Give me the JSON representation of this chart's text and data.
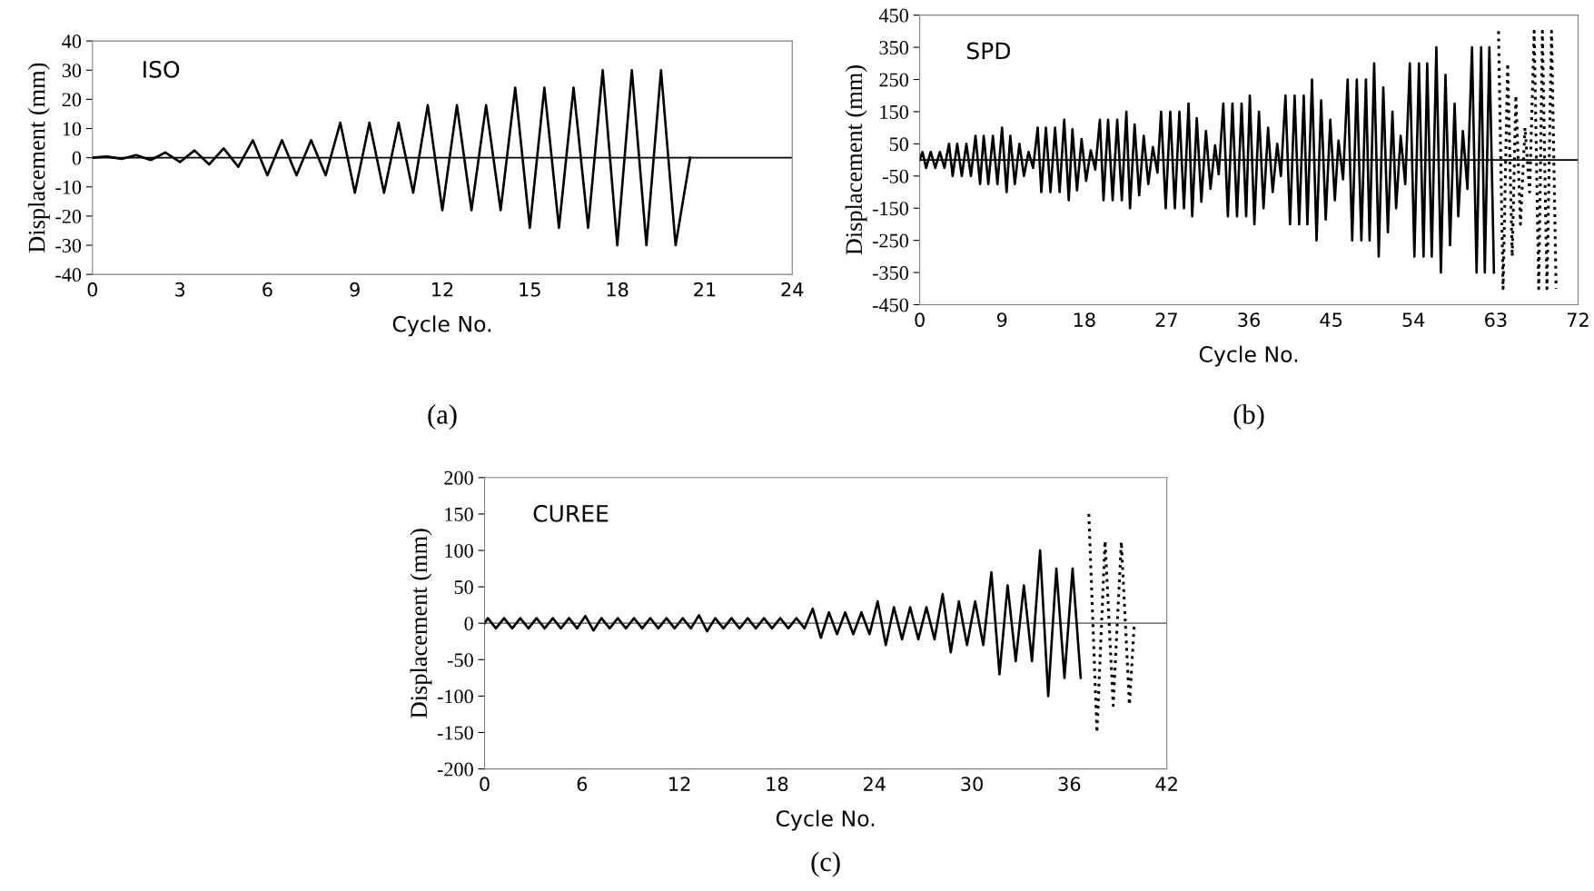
{
  "chart_data": [
    {
      "type": "line",
      "xlabel": "Cycle No.",
      "ylabel": "Displacement (mm)",
      "annotations": [
        "ISO",
        "(a)"
      ],
      "xlim": [
        0,
        24
      ],
      "xticks": [
        0,
        3,
        6,
        9,
        12,
        15,
        18,
        21,
        24
      ],
      "ylim": [
        -40,
        40
      ],
      "yticks": [
        -40,
        -30,
        -20,
        -10,
        0,
        10,
        20,
        30,
        40
      ],
      "grid": false,
      "ref_lines": [
        {
          "axis": "y",
          "value": 0,
          "color": "#000000"
        }
      ],
      "series": [
        {
          "color": "#000000",
          "line_style": "solid",
          "x": [
            0,
            0.5,
            1,
            1.5,
            2,
            2.5,
            3,
            3.5,
            4,
            4.5,
            5,
            5.5,
            6,
            6.5,
            7,
            7.5,
            8,
            8.5,
            9,
            9.5,
            10,
            10.5,
            11,
            11.5,
            12,
            12.5,
            13,
            13.5,
            14,
            14.5,
            15,
            15.5,
            16,
            16.5,
            17,
            17.5,
            18,
            18.5,
            19,
            19.5,
            20,
            20.5
          ],
          "values": [
            0,
            0.4,
            -0.4,
            0.9,
            -0.8,
            1.8,
            -1.5,
            2.5,
            -2.3,
            3.2,
            -3.1,
            6,
            -6,
            6,
            -6,
            6,
            -6,
            12,
            -12,
            12,
            -12,
            12,
            -12,
            18,
            -18,
            18,
            -18,
            18,
            -18,
            24,
            -24,
            24,
            -24,
            24,
            -24,
            30,
            -30,
            30,
            -30,
            30,
            -30,
            0
          ]
        }
      ]
    },
    {
      "type": "line",
      "xlabel": "Cycle No.",
      "ylabel": "Displacement (mm)",
      "annotations": [
        "SPD",
        "(b)"
      ],
      "xlim": [
        0,
        72
      ],
      "xticks": [
        0,
        9,
        18,
        27,
        36,
        45,
        54,
        63,
        72
      ],
      "ylim": [
        -450,
        450
      ],
      "yticks": [
        -450,
        -350,
        -250,
        -150,
        -50,
        50,
        150,
        250,
        350,
        450
      ],
      "grid": false,
      "ref_lines": [
        {
          "axis": "y",
          "value": 0,
          "color": "#000000"
        }
      ],
      "series": [
        {
          "color": "#000000",
          "line_style": "solid",
          "x": [
            0,
            0.3,
            0.7,
            1.2,
            1.7,
            2.2,
            2.7,
            3.2,
            3.6,
            4.1,
            4.6,
            5.1,
            5.6,
            6.1,
            6.6,
            7.0,
            7.5,
            8.0,
            8.5,
            9.0,
            9.5,
            9.9,
            10.4,
            10.9,
            11.4,
            11.9,
            12.4,
            12.9,
            13.3,
            13.8,
            14.3,
            14.8,
            15.3,
            15.8,
            16.3,
            16.7,
            17.2,
            17.7,
            18.2,
            18.7,
            19.2,
            19.7,
            20.1,
            20.6,
            21.1,
            21.6,
            22.1,
            22.6,
            23.0,
            23.5,
            24.0,
            24.5,
            25.0,
            25.5,
            26.0,
            26.4,
            26.9,
            27.4,
            27.9,
            28.4,
            28.9,
            29.4,
            29.8,
            30.3,
            30.8,
            31.3,
            31.8,
            32.3,
            32.7,
            33.2,
            33.7,
            34.2,
            34.7,
            35.2,
            35.7,
            36.1,
            36.6,
            37.1,
            37.6,
            38.1,
            38.6,
            39.1,
            39.5,
            40.0,
            40.5,
            41.0,
            41.5,
            42.0,
            42.4,
            42.9,
            43.4,
            43.9,
            44.4,
            44.9,
            45.4,
            45.8,
            46.3,
            46.8,
            47.3,
            47.8,
            48.3,
            48.8,
            49.2,
            49.7,
            50.2,
            50.7,
            51.2,
            51.7,
            52.1,
            52.6,
            53.1,
            53.6,
            54.1,
            54.6,
            55.1,
            55.5,
            56.0,
            56.5,
            57.0,
            57.5,
            58.0,
            58.5,
            58.9,
            59.4,
            59.9,
            60.4,
            60.9,
            61.4,
            61.8,
            62.3,
            62.8
          ],
          "values": [
            0,
            25,
            -25,
            25,
            -25,
            25,
            -25,
            50,
            -50,
            50,
            -50,
            50,
            -50,
            75,
            -75,
            75,
            -75,
            75,
            -75,
            100,
            -100,
            75,
            -75,
            50,
            -50,
            25,
            -25,
            100,
            -100,
            100,
            -100,
            100,
            -100,
            125,
            -125,
            95,
            -95,
            65,
            -65,
            30,
            -30,
            125,
            -125,
            125,
            -125,
            125,
            -125,
            150,
            -150,
            110,
            -110,
            75,
            -75,
            40,
            -40,
            150,
            -150,
            150,
            -150,
            150,
            -150,
            175,
            -175,
            130,
            -130,
            90,
            -90,
            45,
            -45,
            175,
            -175,
            175,
            -175,
            175,
            -175,
            200,
            -200,
            150,
            -150,
            100,
            -100,
            50,
            -50,
            200,
            -200,
            200,
            -200,
            200,
            -200,
            250,
            -250,
            185,
            -185,
            125,
            -125,
            60,
            -60,
            250,
            -250,
            250,
            -250,
            250,
            -250,
            300,
            -300,
            225,
            -225,
            150,
            -150,
            75,
            -75,
            300,
            -300,
            300,
            -300,
            300,
            -300,
            350,
            -350,
            265,
            -265,
            175,
            -175,
            90,
            -90,
            350,
            -350,
            350,
            -350,
            350,
            -350
          ]
        },
        {
          "color": "#000000",
          "line_style": "dotted",
          "x": [
            63.3,
            63.8,
            64.3,
            64.8,
            65.2,
            65.7,
            66.2,
            66.7,
            67.2,
            67.7,
            68.1,
            68.6,
            69.1,
            69.6
          ],
          "values": [
            400,
            -400,
            300,
            -300,
            200,
            -200,
            100,
            -100,
            400,
            -400,
            400,
            -400,
            400,
            -400
          ]
        }
      ]
    },
    {
      "type": "line",
      "xlabel": "Cycle No.",
      "ylabel": "Displacement (mm)",
      "annotations": [
        "CUREE",
        "(c)"
      ],
      "xlim": [
        0,
        42
      ],
      "xticks": [
        0,
        6,
        12,
        18,
        24,
        30,
        36,
        42
      ],
      "ylim": [
        -200,
        200
      ],
      "yticks": [
        -200,
        -150,
        -100,
        -50,
        0,
        50,
        100,
        150,
        200
      ],
      "grid": false,
      "ref_lines": [
        {
          "axis": "y",
          "value": 0,
          "color": "#808080"
        }
      ],
      "series": [
        {
          "color": "#000000",
          "line_style": "solid",
          "x": [
            0,
            0.2,
            0.7,
            1.2,
            1.7,
            2.2,
            2.7,
            3.2,
            3.7,
            4.2,
            4.7,
            5.2,
            5.7,
            6.2,
            6.7,
            7.2,
            7.7,
            8.2,
            8.7,
            9.2,
            9.7,
            10.2,
            10.7,
            11.2,
            11.7,
            12.2,
            12.7,
            13.2,
            13.7,
            14.2,
            14.7,
            15.2,
            15.7,
            16.2,
            16.7,
            17.2,
            17.7,
            18.2,
            18.7,
            19.2,
            19.7,
            20.2,
            20.7,
            21.2,
            21.7,
            22.2,
            22.7,
            23.2,
            23.7,
            24.2,
            24.7,
            25.2,
            25.7,
            26.2,
            26.7,
            27.2,
            27.7,
            28.2,
            28.7,
            29.2,
            29.7,
            30.2,
            30.7,
            31.2,
            31.7,
            32.2,
            32.7,
            33.2,
            33.7,
            34.2,
            34.7,
            35.2,
            35.7,
            36.2,
            36.7
          ],
          "values": [
            0,
            7,
            -7,
            7,
            -7,
            7,
            -7,
            7,
            -7,
            7,
            -7,
            7,
            -7,
            10,
            -10,
            7,
            -7,
            7,
            -7,
            7,
            -7,
            7,
            -7,
            7,
            -7,
            7,
            -7,
            11,
            -11,
            7,
            -7,
            7,
            -7,
            7,
            -7,
            7,
            -7,
            7,
            -7,
            7,
            -7,
            20,
            -20,
            15,
            -15,
            15,
            -15,
            15,
            -15,
            30,
            -30,
            22,
            -22,
            22,
            -22,
            22,
            -22,
            40,
            -40,
            30,
            -30,
            30,
            -30,
            70,
            -70,
            52,
            -52,
            52,
            -52,
            100,
            -100,
            75,
            -75,
            75,
            -75
          ]
        },
        {
          "color": "#000000",
          "line_style": "dotted",
          "x": [
            37.2,
            37.7,
            38.2,
            38.7,
            39.2,
            39.7,
            40.0
          ],
          "values": [
            150,
            -150,
            113,
            -113,
            112,
            -112,
            0
          ]
        }
      ]
    }
  ]
}
